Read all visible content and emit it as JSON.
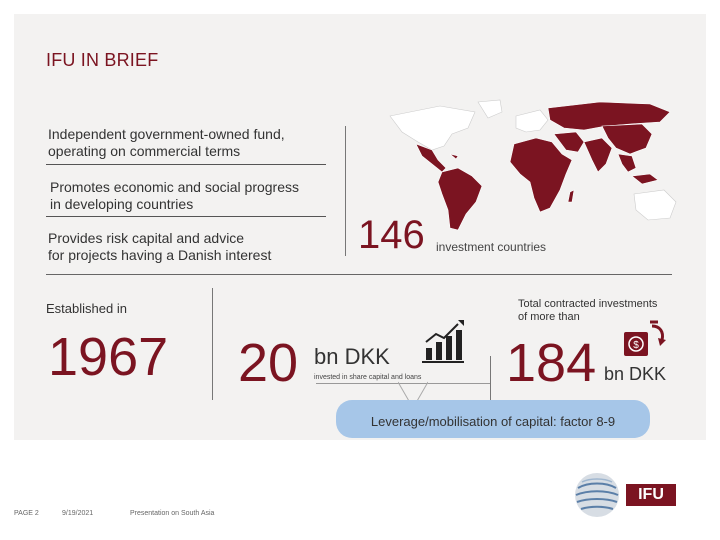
{
  "slide": {
    "title": "IFU IN BRIEF",
    "facts": [
      {
        "line1": "Independent government-owned fund,",
        "line2": "operating on commercial terms"
      },
      {
        "line1": "Promotes economic and social progress",
        "line2": "in developing countries"
      },
      {
        "line1": "Provides risk capital and advice",
        "line2": "for projects having a Danish interest"
      }
    ],
    "countries": {
      "number": "146",
      "label": "investment countries"
    },
    "established": {
      "label": "Established in",
      "year": "1967"
    },
    "invested": {
      "number": "20",
      "unit": "bn DKK",
      "caption": "invested in share capital and loans"
    },
    "contracted": {
      "label_line1": "Total contracted investments",
      "label_line2": "of more than",
      "number": "184",
      "unit": "bn DKK"
    },
    "leverage": "Leverage/mobilisation of capital: factor 8-9"
  },
  "footer": {
    "page": "PAGE 2",
    "date": "9/19/2021",
    "presentation": "Presentation on South Asia"
  },
  "logo": {
    "text": "IFU"
  },
  "colors": {
    "accent": "#7b1421",
    "callout": "#a6c6e8",
    "panel": "#f3f2f1"
  },
  "icons": [
    "world-map",
    "growth-chart-icon",
    "money-exchange-icon",
    "globe-logo-icon"
  ]
}
